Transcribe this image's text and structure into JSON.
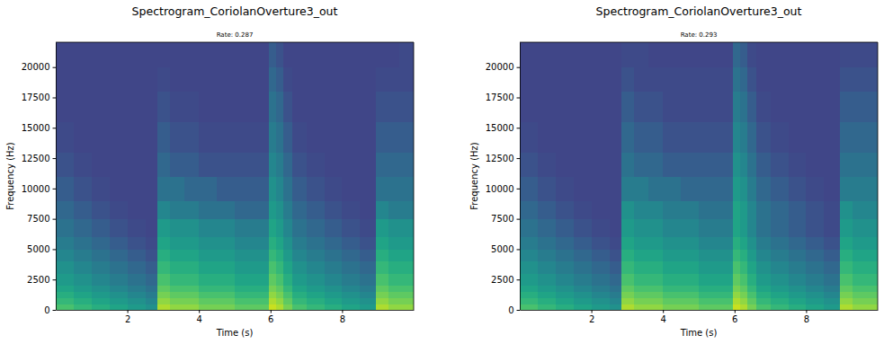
{
  "chart_data": [
    {
      "type": "heatmap",
      "title": "Spectrogram_CoriolanOverture3_out",
      "subtitle": "Rate: 0.287",
      "x_label": "Time (s)",
      "y_label": "Frequency (Hz)",
      "xlim": [
        0,
        10
      ],
      "ylim": [
        0,
        22050
      ],
      "xticks": [
        2,
        4,
        6,
        8
      ],
      "yticks": [
        0,
        2500,
        5000,
        7500,
        10000,
        12500,
        15000,
        17500,
        20000
      ],
      "x_edges": [
        0,
        0.5,
        1,
        1.5,
        2,
        2.5,
        2.85,
        3.2,
        3.6,
        4,
        4.5,
        5,
        5.5,
        5.95,
        6.15,
        6.35,
        6.6,
        7,
        7.5,
        8,
        8.5,
        8.95,
        9.3,
        9.6,
        10
      ],
      "y_edges": [
        0,
        500,
        1000,
        1500,
        2000,
        3000,
        4000,
        5000,
        6000,
        7500,
        9000,
        11000,
        13000,
        15500,
        18000,
        20000,
        22050
      ],
      "zlim": [
        -1.5,
        10.5
      ],
      "z": [
        [
          7,
          6.5,
          6,
          5.5,
          5,
          4.5,
          9,
          8.5,
          8.5,
          8,
          8,
          7.5,
          7.5,
          9.5,
          9,
          8,
          7,
          6.5,
          6,
          5.5,
          5,
          9,
          8.5,
          8.5
        ],
        [
          6.5,
          6,
          5.5,
          5,
          4.5,
          4,
          8.5,
          8,
          8,
          7.5,
          7.5,
          7,
          7,
          9,
          8.5,
          7.5,
          6.5,
          6,
          5.5,
          5,
          4.5,
          8.5,
          8,
          8
        ],
        [
          6,
          5.5,
          5,
          4.5,
          4,
          3.5,
          8,
          7.5,
          7.5,
          7,
          7,
          6.5,
          6.5,
          8.5,
          8,
          7,
          6,
          5.5,
          5,
          4.5,
          4,
          8,
          7.5,
          7.5
        ],
        [
          5.5,
          5,
          4.5,
          4,
          3.5,
          3,
          7.5,
          7,
          7,
          6.5,
          6.5,
          6,
          6,
          8,
          7.5,
          6.5,
          5.5,
          5,
          4.5,
          4,
          3.5,
          7.5,
          7,
          7
        ],
        [
          5,
          4.5,
          4,
          3.5,
          3,
          2.5,
          7,
          6.5,
          6.5,
          6,
          6,
          5.5,
          5.5,
          7.5,
          7,
          6,
          5,
          4.5,
          4,
          3.5,
          3,
          7,
          6.5,
          6.5
        ],
        [
          4.5,
          4,
          3.5,
          3,
          2.5,
          2,
          6.5,
          6,
          6,
          5.5,
          5.5,
          5,
          5,
          7,
          6.5,
          5.5,
          4.5,
          4,
          3.5,
          3,
          2.5,
          6.5,
          6,
          6
        ],
        [
          4,
          3.5,
          3,
          2.5,
          2,
          1.5,
          6,
          5.5,
          5.5,
          5,
          5,
          4.5,
          4.5,
          6.5,
          6,
          5,
          4,
          3.5,
          3,
          2.5,
          2,
          6,
          5.5,
          5.5
        ],
        [
          3.5,
          3,
          2.5,
          2,
          1.5,
          1.2,
          5.5,
          5,
          5,
          4.5,
          4.5,
          4,
          4,
          6,
          5.5,
          4.5,
          3.5,
          3,
          2.5,
          2,
          1.5,
          5.5,
          5,
          5
        ],
        [
          3,
          2.5,
          2,
          1.5,
          1.2,
          1,
          5,
          4.5,
          4.5,
          4,
          4,
          3.5,
          3.5,
          5.5,
          5,
          4,
          3,
          2.5,
          2,
          1.5,
          1.2,
          5,
          4.5,
          4.5
        ],
        [
          2.5,
          2,
          1.5,
          1.2,
          1,
          1,
          4,
          3.5,
          3.5,
          3,
          3,
          2.5,
          2.5,
          5,
          4.5,
          3.5,
          2.5,
          2,
          1.5,
          1.2,
          1,
          4,
          3.5,
          3.5
        ],
        [
          2,
          1.5,
          1.2,
          1,
          1,
          1,
          3,
          3,
          2.5,
          2.5,
          2,
          2,
          2,
          4.5,
          4,
          3,
          2,
          1.5,
          1.2,
          1,
          1,
          3,
          3,
          3
        ],
        [
          1.5,
          1.2,
          1,
          1,
          1,
          1,
          2.5,
          2,
          2,
          1.5,
          1.5,
          1.5,
          1.5,
          4,
          3.5,
          2.5,
          1.5,
          1.2,
          1,
          1,
          1,
          2.5,
          2.5,
          2.5
        ],
        [
          1.2,
          1,
          1,
          1,
          1,
          1,
          2,
          1.5,
          1.5,
          1.2,
          1.2,
          1.2,
          1.2,
          3.5,
          3,
          2,
          1.2,
          1,
          1,
          1,
          1,
          2,
          2,
          2
        ],
        [
          1,
          1,
          1,
          1,
          1,
          1,
          1.5,
          1.2,
          1.2,
          1,
          1,
          1,
          1,
          3,
          2.5,
          1.5,
          1,
          1,
          1,
          1,
          1,
          1.5,
          1.5,
          1.5
        ],
        [
          1,
          1,
          1,
          1,
          1,
          1,
          1.2,
          1,
          1,
          1,
          1,
          1,
          1,
          2.5,
          2,
          1.2,
          1,
          1,
          1,
          1,
          1,
          1.2,
          1.2,
          1.2
        ],
        [
          1,
          1,
          1,
          1,
          1,
          1,
          1,
          1,
          1,
          1,
          1,
          1,
          1,
          2,
          1.5,
          1,
          1,
          1,
          1,
          1,
          1,
          1,
          1,
          1.2
        ]
      ]
    },
    {
      "type": "heatmap",
      "title": "Spectrogram_CoriolanOverture3_out",
      "subtitle": "Rate: 0.293",
      "x_label": "Time (s)",
      "y_label": "Frequency (Hz)",
      "xlim": [
        0,
        10
      ],
      "ylim": [
        0,
        22050
      ],
      "xticks": [
        2,
        4,
        6,
        8
      ],
      "yticks": [
        0,
        2500,
        5000,
        7500,
        10000,
        12500,
        15000,
        17500,
        20000
      ],
      "x_edges": [
        0,
        0.5,
        1,
        1.5,
        2,
        2.5,
        2.85,
        3.2,
        3.6,
        4,
        4.5,
        5,
        5.5,
        5.95,
        6.15,
        6.35,
        6.6,
        7,
        7.5,
        8,
        8.5,
        8.95,
        9.3,
        9.6,
        10
      ],
      "y_edges": [
        0,
        500,
        1000,
        1500,
        2000,
        3000,
        4000,
        5000,
        6000,
        7500,
        9000,
        11000,
        13000,
        15500,
        18000,
        20000,
        22050
      ],
      "zlim": [
        -1.5,
        10.5
      ],
      "z": [
        [
          7,
          6.5,
          6,
          5.5,
          5,
          4.5,
          9,
          8.5,
          8.5,
          8,
          8,
          7.5,
          7.5,
          9.5,
          9,
          8,
          7,
          6.5,
          6,
          5.5,
          5,
          9,
          8.5,
          8.5
        ],
        [
          6.5,
          6,
          5.5,
          5,
          4.5,
          4,
          8.5,
          8,
          8,
          7.5,
          7.5,
          7,
          7,
          9,
          8.5,
          7.5,
          6.5,
          6,
          5.5,
          5,
          4.5,
          8.5,
          8,
          8
        ],
        [
          6,
          5.5,
          5,
          4.5,
          4,
          3.5,
          8,
          7.5,
          7.5,
          7,
          7,
          6.5,
          6.5,
          8.5,
          8,
          7,
          6,
          5.5,
          5,
          4.5,
          4,
          8,
          7.5,
          7.5
        ],
        [
          5.5,
          5,
          4.5,
          4,
          3.5,
          3,
          7.5,
          7,
          7,
          6.5,
          6.5,
          6,
          6,
          8,
          7.5,
          6.5,
          5.5,
          5,
          4.5,
          4,
          3.5,
          7.5,
          7,
          7
        ],
        [
          5,
          4.5,
          4,
          3.5,
          3,
          2.5,
          7,
          6.5,
          6.5,
          6,
          6,
          5.5,
          5.5,
          7.5,
          7,
          6,
          5,
          4.5,
          4,
          3.5,
          3,
          7,
          6.5,
          6.5
        ],
        [
          4.5,
          4,
          3.5,
          3,
          2.5,
          2,
          6.5,
          6,
          6,
          5.5,
          5.5,
          5,
          5,
          7,
          6.5,
          5.5,
          4.5,
          4,
          3.5,
          3,
          2.5,
          6.5,
          6,
          6
        ],
        [
          4,
          3.5,
          3,
          2.5,
          2,
          1.5,
          6,
          5.5,
          5.5,
          5,
          5,
          4.5,
          4.5,
          6.5,
          6,
          5,
          4,
          3.5,
          3,
          2.5,
          2,
          6,
          5.5,
          5.5
        ],
        [
          3.5,
          3,
          2.5,
          2,
          1.5,
          1.2,
          5.5,
          5,
          5,
          4.5,
          4.5,
          4,
          4,
          6,
          5.5,
          4.5,
          3.5,
          3,
          2.5,
          2,
          1.5,
          5.5,
          5,
          5
        ],
        [
          3,
          2.5,
          2,
          1.5,
          1.2,
          1,
          5,
          4.5,
          4.5,
          4,
          4,
          3.5,
          3.5,
          5.5,
          5,
          4,
          3,
          2.5,
          2,
          1.5,
          1.2,
          5,
          4.5,
          4.5
        ],
        [
          2.5,
          2,
          1.5,
          1.2,
          1,
          1,
          4.5,
          4,
          4,
          3.5,
          3.5,
          3,
          3,
          5.5,
          5,
          4,
          3,
          2.5,
          2,
          1.5,
          1.2,
          4.5,
          4,
          4
        ],
        [
          2,
          1.5,
          1.2,
          1,
          1,
          1,
          3.5,
          3.5,
          3,
          3,
          2.5,
          2.5,
          2.5,
          5,
          4.5,
          3.5,
          2.5,
          2,
          1.5,
          1.2,
          1,
          3.5,
          3.5,
          3.5
        ],
        [
          1.5,
          1.2,
          1,
          1,
          1,
          1,
          3,
          2.5,
          2.5,
          2,
          2,
          2,
          2,
          4.5,
          4,
          3,
          2,
          1.5,
          1.2,
          1,
          1,
          3,
          3,
          3
        ],
        [
          1.2,
          1,
          1,
          1,
          1,
          1,
          2.5,
          2,
          2,
          1.5,
          1.5,
          1.5,
          1.5,
          4,
          3.5,
          2.5,
          1.5,
          1.2,
          1,
          1,
          1,
          2.5,
          2.5,
          2.5
        ],
        [
          1,
          1,
          1,
          1,
          1,
          1,
          2,
          1.5,
          1.5,
          1.2,
          1.2,
          1.2,
          1.2,
          3.5,
          3,
          2,
          1.2,
          1,
          1,
          1,
          1,
          2,
          2,
          2
        ],
        [
          1,
          1,
          1,
          1,
          1,
          1,
          1.5,
          1.2,
          1.2,
          1.2,
          1.2,
          1.2,
          1.2,
          3,
          2.5,
          1.5,
          1,
          1,
          1,
          1,
          1,
          1.5,
          1.5,
          1.5
        ],
        [
          1,
          1,
          1,
          1,
          1,
          1,
          1.2,
          1.2,
          1,
          1,
          1,
          1,
          1,
          2.5,
          2,
          1.2,
          1,
          1,
          1,
          1,
          1,
          1.2,
          1.2,
          1.2
        ]
      ]
    }
  ]
}
